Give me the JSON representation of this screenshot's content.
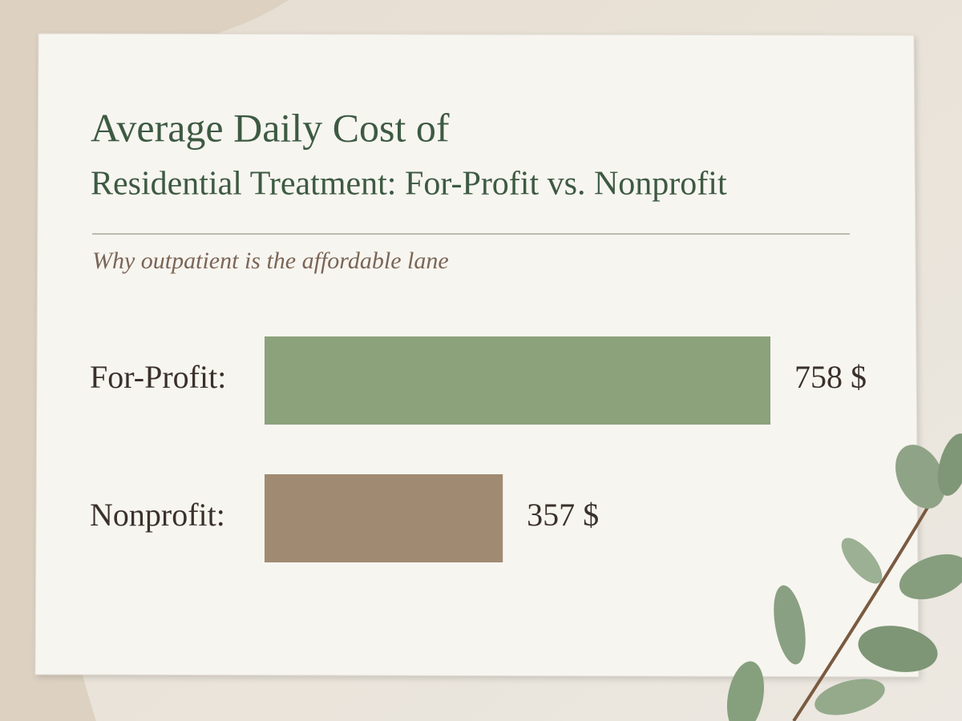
{
  "chart_data": {
    "type": "bar",
    "orientation": "horizontal",
    "title": [
      "Average Daily Cost of",
      "Residential Treatment: For-Profit vs. Nonprofit"
    ],
    "subtitle": "Why outpatient is the affordable lane",
    "categories": [
      "For-Profit:",
      "Nonprofit:"
    ],
    "values": [
      758,
      357
    ],
    "value_labels": [
      "758 $",
      "357 $"
    ],
    "colors": [
      "#8ba27b",
      "#a18a72"
    ]
  }
}
